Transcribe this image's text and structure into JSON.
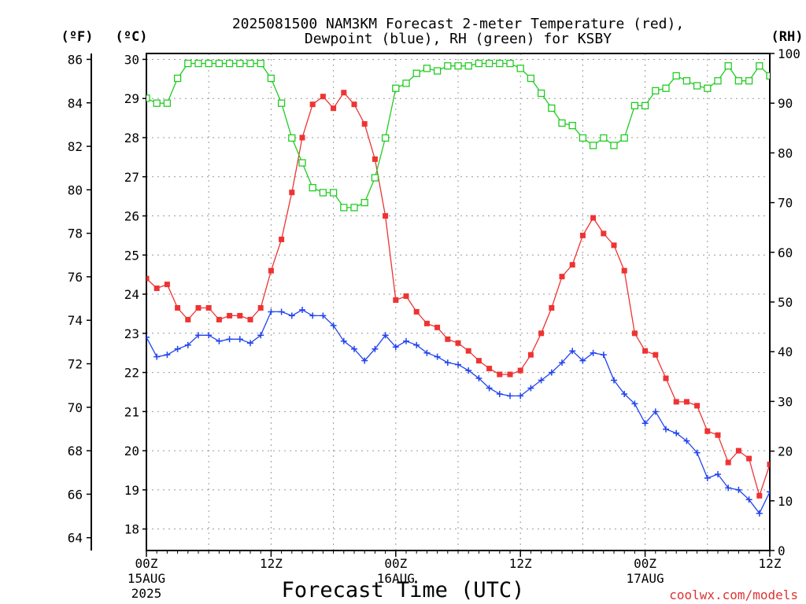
{
  "chart_data": {
    "type": "line",
    "title": "2025081500 NAM3KM Forecast 2-meter Temperature (red),",
    "subtitle": "Dewpoint (blue), RH (green) for KSBY",
    "xlabel": "Forecast Time (UTC)",
    "credit": "coolwx.com/models",
    "units": {
      "fahrenheit": "(ºF)",
      "celsius": "(ºC)",
      "rh": "(RH)"
    },
    "x_ticks": [
      {
        "hour": 0,
        "line1": "00Z",
        "line2": "15AUG",
        "line3": "2025"
      },
      {
        "hour": 12,
        "line1": "12Z",
        "line2": "",
        "line3": ""
      },
      {
        "hour": 24,
        "line1": "00Z",
        "line2": "16AUG",
        "line3": ""
      },
      {
        "hour": 36,
        "line1": "12Z",
        "line2": "",
        "line3": ""
      },
      {
        "hour": 48,
        "line1": "00Z",
        "line2": "17AUG",
        "line3": ""
      },
      {
        "hour": 60,
        "line1": "12Z",
        "line2": "",
        "line3": ""
      }
    ],
    "xlim": [
      0,
      60
    ],
    "ylim_celsius": [
      17.45,
      30.15
    ],
    "ylim_rh": [
      0,
      100
    ],
    "celsius_ticks": [
      "18",
      "19",
      "20",
      "21",
      "22",
      "23",
      "24",
      "25",
      "26",
      "27",
      "28",
      "29",
      "30"
    ],
    "fahrenheit_ticks": [
      "64",
      "66",
      "68",
      "70",
      "72",
      "74",
      "76",
      "78",
      "80",
      "82",
      "84",
      "86"
    ],
    "rh_ticks": [
      "0",
      "10",
      "20",
      "30",
      "40",
      "50",
      "60",
      "70",
      "80",
      "90",
      "100"
    ],
    "grid": true,
    "colors": {
      "temperature": "#ee3333",
      "dewpoint": "#2244ee",
      "rh": "#22cc22",
      "grid": "#999999"
    },
    "hours": [
      0,
      1,
      2,
      3,
      4,
      5,
      6,
      7,
      8,
      9,
      10,
      11,
      12,
      13,
      14,
      15,
      16,
      17,
      18,
      19,
      20,
      21,
      22,
      23,
      24,
      25,
      26,
      27,
      28,
      29,
      30,
      31,
      32,
      33,
      34,
      35,
      36,
      37,
      38,
      39,
      40,
      41,
      42,
      43,
      44,
      45,
      46,
      47,
      48,
      49,
      50,
      51,
      52,
      53,
      54,
      55,
      56,
      57,
      58,
      59,
      60
    ],
    "series": [
      {
        "name": "Temperature",
        "marker": "filled-square",
        "values": [
          24.4,
          24.15,
          24.25,
          23.65,
          23.35,
          23.65,
          23.65,
          23.35,
          23.45,
          23.45,
          23.35,
          23.65,
          24.6,
          25.4,
          26.6,
          28.0,
          28.85,
          29.05,
          28.75,
          29.15,
          28.85,
          28.35,
          27.45,
          26.0,
          23.85,
          23.95,
          23.55,
          23.25,
          23.15,
          22.85,
          22.75,
          22.55,
          22.3,
          22.1,
          21.95,
          21.95,
          22.05,
          22.45,
          23.0,
          23.65,
          24.45,
          24.75,
          25.5,
          25.95,
          25.55,
          25.25,
          24.6,
          23.0,
          22.55,
          22.45,
          21.85,
          21.25,
          21.25,
          21.15,
          20.5,
          20.4,
          19.7,
          20.0,
          19.8,
          18.85,
          19.65
        ]
      },
      {
        "name": "Dewpoint",
        "marker": "plus",
        "values": [
          22.9,
          22.4,
          22.45,
          22.6,
          22.7,
          22.95,
          22.95,
          22.8,
          22.85,
          22.85,
          22.75,
          22.95,
          23.55,
          23.55,
          23.45,
          23.6,
          23.45,
          23.45,
          23.2,
          22.8,
          22.6,
          22.3,
          22.6,
          22.95,
          22.65,
          22.8,
          22.7,
          22.5,
          22.4,
          22.25,
          22.2,
          22.05,
          21.85,
          21.6,
          21.45,
          21.4,
          21.4,
          21.6,
          21.8,
          22.0,
          22.25,
          22.55,
          22.3,
          22.5,
          22.45,
          21.8,
          21.45,
          21.2,
          20.7,
          21.0,
          20.55,
          20.45,
          20.25,
          19.95,
          19.3,
          19.4,
          19.05,
          19.0,
          18.75,
          18.4,
          18.95
        ]
      },
      {
        "name": "RH",
        "axis": "rh",
        "marker": "open-square",
        "values": [
          91,
          90,
          90,
          95,
          98,
          98,
          98,
          98,
          98,
          98,
          98,
          98,
          95,
          90,
          83,
          78,
          73,
          72,
          72,
          69,
          69,
          70,
          75,
          83,
          93,
          94,
          96,
          97,
          96.5,
          97.5,
          97.5,
          97.5,
          98,
          98,
          98,
          98,
          97,
          95,
          92,
          89,
          86,
          85.5,
          83,
          81.5,
          83,
          81.5,
          83,
          89.5,
          89.5,
          92.5,
          93,
          95.5,
          94.5,
          93.5,
          93,
          94.5,
          97.5,
          94.5,
          94.5,
          97.5,
          95.5
        ]
      }
    ]
  }
}
